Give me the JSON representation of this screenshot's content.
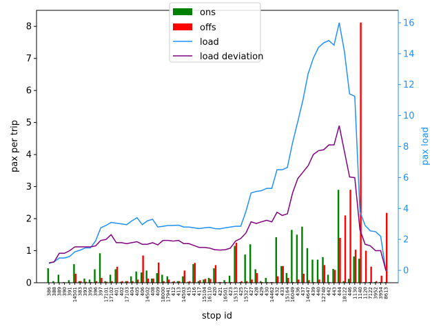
{
  "chart_data": {
    "type": "bar",
    "xlabel": "stop id",
    "ylabel": "pax per trip",
    "y2label": "pax load",
    "ylim": [
      0,
      8.5
    ],
    "y2lim": [
      -0.8,
      16.8
    ],
    "yticks": [
      0,
      1,
      2,
      3,
      4,
      5,
      6,
      7,
      8
    ],
    "y2ticks": [
      0,
      2,
      4,
      6,
      8,
      10,
      12,
      14,
      16
    ],
    "grid": false,
    "legend_position": "top-center",
    "colors": {
      "ons": "#008000",
      "offs": "#ff0000",
      "load": "#1e90ff",
      "load_deviation": "#800080",
      "right_axis": "#1e90ff"
    },
    "categories": [
      "386",
      "388",
      "389",
      "390",
      "391",
      "14501",
      "383",
      "393",
      "395",
      "396",
      "397",
      "17101",
      "17102",
      "401",
      "402",
      "17103",
      "404",
      "405",
      "406",
      "14502",
      "408",
      "409",
      "18000",
      "17941",
      "412",
      "413",
      "14503",
      "415",
      "416",
      "417",
      "15104",
      "16110",
      "420",
      "421",
      "16501",
      "423",
      "15313",
      "425",
      "15327",
      "427",
      "428",
      "429",
      "430",
      "14462",
      "432",
      "433",
      "15164",
      "16049",
      "436",
      "437",
      "14647",
      "439",
      "440",
      "12740",
      "442",
      "443",
      "444",
      "18122",
      "446",
      "1130",
      "1140",
      "1120",
      "7122",
      "3952",
      "3954",
      "8613"
    ],
    "xtick_labels": [
      "386",
      "388",
      "389",
      "390",
      "391",
      "14501",
      "383",
      "393",
      "395",
      "396",
      "397",
      "17101",
      "17102",
      "401",
      "402",
      "17103",
      "404",
      "405",
      "406",
      "14502",
      "408",
      "409",
      "18000",
      "17941",
      "412",
      "413",
      "14503",
      "415",
      "416",
      "417",
      "15104",
      "16110",
      "420",
      "421",
      "16501",
      "423",
      "15313",
      "425",
      "15327",
      "427",
      "428",
      "429",
      "430",
      "14462",
      "432",
      "433",
      "15164",
      "16049",
      "436",
      "437",
      "14647",
      "439",
      "440",
      "12740",
      "442",
      "443",
      "444",
      "18122",
      "446",
      "1130",
      "1140",
      "1120",
      "7122",
      "3952",
      "3954",
      "8613"
    ],
    "series": [
      {
        "name": "ons",
        "type": "bar",
        "axis": "left",
        "values": [
          0.45,
          0.05,
          0.25,
          0.02,
          0.08,
          0.58,
          0.05,
          0.13,
          0.1,
          0.42,
          0.92,
          0.05,
          0.25,
          0.42,
          0.03,
          0.05,
          0.2,
          0.35,
          0.32,
          0.38,
          0.13,
          0.3,
          0.25,
          0.2,
          0.03,
          0.05,
          0.2,
          0.03,
          0.58,
          0.05,
          0.1,
          0.15,
          0.45,
          0.02,
          0.08,
          0.22,
          1.15,
          0.02,
          0.88,
          1.2,
          0.42,
          0.05,
          0.15,
          0.02,
          1.42,
          0.52,
          0.3,
          1.65,
          1.5,
          1.75,
          1.08,
          0.72,
          0.72,
          0.8,
          0.25,
          0.43,
          2.9,
          0.05,
          0.12,
          0.82,
          0.75,
          0.02,
          0.02,
          0.02,
          0.02,
          0.02
        ]
      },
      {
        "name": "offs",
        "type": "bar",
        "axis": "left",
        "values": [
          0.0,
          0.0,
          0.0,
          0.0,
          0.0,
          0.28,
          0.05,
          0.03,
          0.02,
          0.05,
          0.15,
          0.03,
          0.05,
          0.5,
          0.05,
          0.05,
          0.05,
          0.1,
          0.85,
          0.13,
          0.13,
          0.63,
          0.05,
          0.1,
          0.05,
          0.05,
          0.38,
          0.05,
          0.62,
          0.08,
          0.12,
          0.12,
          0.55,
          0.02,
          0.02,
          0.02,
          1.25,
          0.05,
          0.05,
          0.1,
          0.3,
          0.02,
          0.02,
          0.02,
          0.2,
          0.52,
          0.15,
          0.02,
          0.1,
          0.28,
          0.08,
          0.02,
          0.1,
          0.55,
          0.02,
          0.4,
          1.4,
          2.1,
          2.9,
          1.03,
          8.12,
          1.0,
          0.5,
          0.05,
          0.22,
          2.18
        ]
      },
      {
        "name": "load",
        "type": "line",
        "axis": "right",
        "values": [
          0.45,
          0.55,
          0.8,
          0.8,
          0.9,
          1.2,
          1.3,
          1.45,
          1.45,
          1.9,
          2.75,
          2.9,
          3.1,
          3.05,
          3.0,
          2.95,
          3.2,
          3.4,
          2.95,
          3.2,
          3.3,
          2.8,
          2.85,
          2.9,
          2.9,
          2.92,
          2.8,
          2.8,
          2.75,
          2.7,
          2.75,
          2.78,
          2.7,
          2.68,
          2.75,
          2.8,
          2.85,
          2.85,
          3.8,
          5.0,
          5.1,
          5.15,
          5.3,
          5.3,
          6.5,
          6.5,
          6.65,
          8.25,
          9.6,
          11.0,
          12.7,
          13.7,
          14.4,
          14.7,
          14.85,
          14.55,
          16.0,
          14.15,
          11.4,
          11.25,
          3.8,
          2.9,
          2.55,
          2.5,
          2.2,
          -0.05
        ]
      },
      {
        "name": "load deviation",
        "type": "line",
        "axis": "left",
        "values": [
          0.62,
          0.65,
          0.92,
          0.92,
          1.0,
          1.12,
          1.12,
          1.12,
          1.12,
          1.15,
          1.32,
          1.35,
          1.5,
          1.25,
          1.25,
          1.22,
          1.25,
          1.28,
          1.2,
          1.2,
          1.25,
          1.18,
          1.32,
          1.32,
          1.3,
          1.32,
          1.22,
          1.22,
          1.16,
          1.1,
          1.1,
          1.08,
          1.03,
          1.02,
          1.03,
          1.08,
          1.3,
          1.38,
          1.55,
          1.9,
          1.85,
          1.9,
          1.95,
          1.9,
          2.2,
          2.1,
          2.15,
          2.8,
          3.25,
          3.45,
          3.65,
          4.0,
          4.12,
          4.15,
          4.3,
          4.3,
          4.9,
          4.1,
          3.3,
          3.28,
          1.65,
          1.2,
          1.15,
          1.0,
          1.0,
          0.38
        ]
      }
    ]
  }
}
